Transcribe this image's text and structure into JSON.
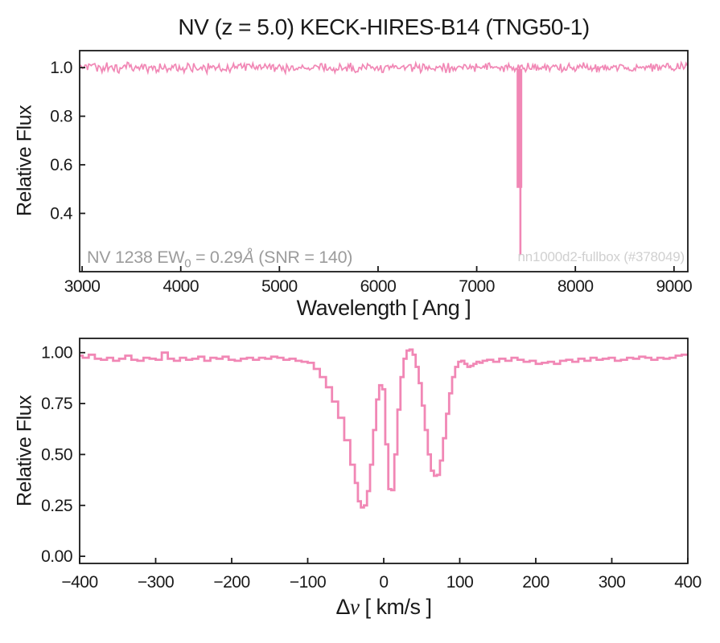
{
  "figure": {
    "title": "NV (z = 5.0) KECK-HIRES-B14 (TNG50-1)",
    "background_color": "#ffffff",
    "line_color": "#f187b5",
    "axis_color": "#1a1a1a",
    "tick_label_color": "#1a1a1a",
    "annotation_gray_color": "#9c9c9c",
    "annotation_light_color": "#d0d0d0"
  },
  "chart_data": [
    {
      "id": "spectrum-panel",
      "type": "line",
      "title": "NV (z = 5.0) KECK-HIRES-B14 (TNG50-1)",
      "xlabel": "Wavelength [ Ang ]",
      "ylabel": "Relative Flux",
      "xlim": [
        2975,
        9140
      ],
      "ylim": [
        0.16,
        1.07
      ],
      "xticks": [
        3000,
        4000,
        5000,
        6000,
        7000,
        8000,
        9000
      ],
      "xtick_labels": [
        "3000",
        "4000",
        "5000",
        "6000",
        "7000",
        "8000",
        "9000"
      ],
      "yticks": [
        0.4,
        0.6,
        0.8,
        1.0
      ],
      "ytick_labels": [
        "0.4",
        "0.6",
        "0.8",
        "1.0"
      ],
      "grid": false,
      "legend": null,
      "description": "Flat continuum at relative flux 1.0 with photon noise across 3000-9200 Ang; single narrow NV 1238 absorption spike at ~7433 Ang reaching minimum flux ~0.23",
      "continuum_flux": 1.0,
      "noise_sigma": 0.008,
      "absorber": {
        "line": "NV 1238",
        "wavelength_ang": 7433,
        "min_flux": 0.23
      },
      "annotation_left": {
        "p1": "NV 1238 EW",
        "sub": "0",
        "p2": " = 0.29",
        "angstrom": "Å",
        "p3": " (SNR = 140)"
      },
      "annotation_right": "nn1000d2-fullbox (#378049)"
    },
    {
      "id": "velocity-panel",
      "type": "line",
      "style": "steps-mid",
      "xlabel_parts": {
        "delta": "Δ",
        "v": "v",
        "units": " [ km/s ]"
      },
      "ylabel": "Relative Flux",
      "xlim": [
        -400,
        400
      ],
      "ylim": [
        -0.035,
        1.07
      ],
      "xticks": [
        -400,
        -300,
        -200,
        -100,
        0,
        100,
        200,
        300,
        400
      ],
      "xtick_labels": [
        "−400",
        "−300",
        "−200",
        "−100",
        "0",
        "100",
        "200",
        "300",
        "400"
      ],
      "yticks": [
        0,
        0.25,
        0.5,
        0.75,
        1.0
      ],
      "ytick_labels": [
        "0.00",
        "0.25",
        "0.50",
        "0.75",
        "1.00"
      ],
      "grid": false,
      "legend": null,
      "points": [
        [
          -400,
          0.985
        ],
        [
          -392,
          0.975
        ],
        [
          -384,
          0.99
        ],
        [
          -376,
          0.97
        ],
        [
          -368,
          0.965
        ],
        [
          -360,
          0.975
        ],
        [
          -352,
          0.96
        ],
        [
          -344,
          0.97
        ],
        [
          -336,
          0.985
        ],
        [
          -328,
          0.965
        ],
        [
          -320,
          0.96
        ],
        [
          -312,
          0.975
        ],
        [
          -304,
          0.97
        ],
        [
          -296,
          0.965
        ],
        [
          -288,
          1.0
        ],
        [
          -280,
          0.97
        ],
        [
          -272,
          0.96
        ],
        [
          -264,
          0.975
        ],
        [
          -256,
          0.965
        ],
        [
          -248,
          0.97
        ],
        [
          -240,
          0.98
        ],
        [
          -232,
          0.96
        ],
        [
          -224,
          0.975
        ],
        [
          -216,
          0.97
        ],
        [
          -208,
          0.98
        ],
        [
          -200,
          0.965
        ],
        [
          -192,
          0.96
        ],
        [
          -184,
          0.97
        ],
        [
          -176,
          0.975
        ],
        [
          -168,
          0.965
        ],
        [
          -160,
          0.975
        ],
        [
          -152,
          0.97
        ],
        [
          -144,
          0.98
        ],
        [
          -136,
          0.975
        ],
        [
          -128,
          0.965
        ],
        [
          -120,
          0.97
        ],
        [
          -112,
          0.96
        ],
        [
          -104,
          0.955
        ],
        [
          -96,
          0.95
        ],
        [
          -88,
          0.92
        ],
        [
          -80,
          0.88
        ],
        [
          -72,
          0.83
        ],
        [
          -64,
          0.76
        ],
        [
          -56,
          0.68
        ],
        [
          -48,
          0.57
        ],
        [
          -40,
          0.45
        ],
        [
          -36,
          0.36
        ],
        [
          -32,
          0.27
        ],
        [
          -28,
          0.24
        ],
        [
          -24,
          0.25
        ],
        [
          -20,
          0.32
        ],
        [
          -16,
          0.45
        ],
        [
          -12,
          0.62
        ],
        [
          -8,
          0.77
        ],
        [
          -4,
          0.84
        ],
        [
          0,
          0.82
        ],
        [
          4,
          0.55
        ],
        [
          8,
          0.33
        ],
        [
          12,
          0.325
        ],
        [
          16,
          0.5
        ],
        [
          20,
          0.72
        ],
        [
          24,
          0.88
        ],
        [
          28,
          0.97
        ],
        [
          32,
          1.01
        ],
        [
          36,
          1.015
        ],
        [
          40,
          0.99
        ],
        [
          44,
          0.93
        ],
        [
          48,
          0.85
        ],
        [
          52,
          0.74
        ],
        [
          56,
          0.62
        ],
        [
          60,
          0.5
        ],
        [
          64,
          0.42
        ],
        [
          68,
          0.395
        ],
        [
          72,
          0.4
        ],
        [
          76,
          0.47
        ],
        [
          80,
          0.58
        ],
        [
          84,
          0.7
        ],
        [
          88,
          0.8
        ],
        [
          92,
          0.88
        ],
        [
          96,
          0.93
        ],
        [
          100,
          0.955
        ],
        [
          104,
          0.96
        ],
        [
          108,
          0.945
        ],
        [
          112,
          0.93
        ],
        [
          116,
          0.935
        ],
        [
          120,
          0.945
        ],
        [
          124,
          0.955
        ],
        [
          128,
          0.95
        ],
        [
          132,
          0.96
        ],
        [
          140,
          0.965
        ],
        [
          148,
          0.955
        ],
        [
          156,
          0.97
        ],
        [
          164,
          0.96
        ],
        [
          172,
          0.975
        ],
        [
          180,
          0.965
        ],
        [
          188,
          0.955
        ],
        [
          196,
          0.96
        ],
        [
          204,
          0.945
        ],
        [
          212,
          0.95
        ],
        [
          220,
          0.955
        ],
        [
          228,
          0.945
        ],
        [
          236,
          0.96
        ],
        [
          244,
          0.965
        ],
        [
          252,
          0.955
        ],
        [
          260,
          0.97
        ],
        [
          268,
          0.96
        ],
        [
          276,
          0.975
        ],
        [
          284,
          0.965
        ],
        [
          292,
          0.97
        ],
        [
          300,
          0.975
        ],
        [
          308,
          0.96
        ],
        [
          316,
          0.965
        ],
        [
          324,
          0.975
        ],
        [
          332,
          0.97
        ],
        [
          340,
          0.98
        ],
        [
          348,
          0.975
        ],
        [
          356,
          0.965
        ],
        [
          364,
          0.975
        ],
        [
          372,
          0.97
        ],
        [
          380,
          0.975
        ],
        [
          388,
          0.985
        ],
        [
          396,
          0.99
        ],
        [
          400,
          0.99
        ]
      ]
    }
  ]
}
